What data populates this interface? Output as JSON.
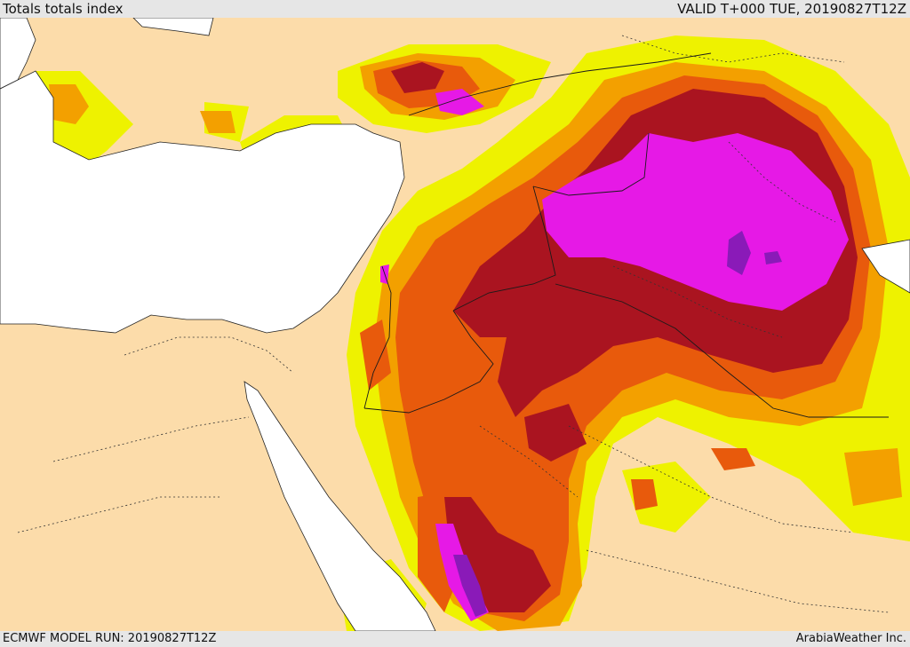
{
  "header": {
    "title": "Totals totals index",
    "valid": "VALID T+000 TUE, 20190827T12Z"
  },
  "footer": {
    "model_run": "ECMWF MODEL RUN: 20190827T12Z",
    "credit": "ArabiaWeather Inc."
  },
  "colors": {
    "land": "#fcdcaa",
    "sea": "#ffffff",
    "level_1": "#eef200",
    "level_2": "#f3a000",
    "level_3": "#e85a0c",
    "level_4": "#aa1420",
    "level_5": "#e619e6",
    "level_6": "#8a1ab8"
  }
}
